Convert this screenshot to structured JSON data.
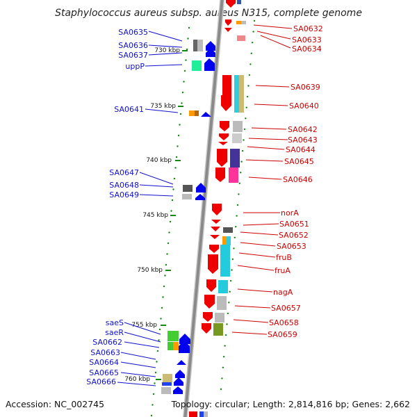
{
  "title": "Staphylococcus aureus subsp. aureus N315, complete genome",
  "footer": {
    "accession": "Accession: NC_002745",
    "summary": "Topology: circular; Length: 2,814,816 bp; Genes: 2,662"
  },
  "colors": {
    "backbone": "#888888",
    "forward_gene": "#ff0000",
    "reverse_gene": "#0000ff",
    "left_label": "#1010cc",
    "right_label": "#cc0000",
    "tick": "#118811"
  },
  "kbp_ticks": [
    "730 kbp",
    "735 kbp",
    "740 kbp",
    "745 kbp",
    "750 kbp",
    "755 kbp",
    "760 kbp"
  ],
  "left_genes": [
    "SA0635",
    "SA0636",
    "SA0637",
    "uppP",
    "SA0641",
    "SA0647",
    "SA0648",
    "SA0649",
    "saeS",
    "saeR",
    "SA0662",
    "SA0663",
    "SA0664",
    "SA0665",
    "SA0666"
  ],
  "right_genes": [
    "SA0632",
    "SA0633",
    "SA0634",
    "SA0639",
    "SA0640",
    "SA0642",
    "SA0643",
    "SA0644",
    "SA0645",
    "SA0646",
    "norA",
    "SA0651",
    "SA0652",
    "SA0653",
    "fruB",
    "fruA",
    "nagA",
    "SA0657",
    "SA0658",
    "SA0659"
  ]
}
